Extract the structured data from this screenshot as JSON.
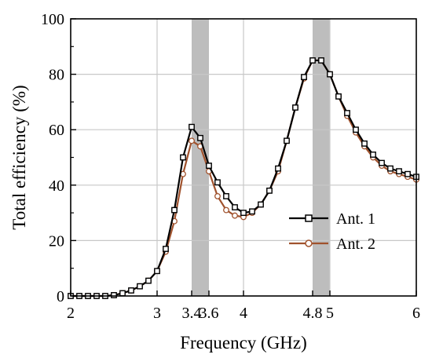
{
  "chart_data": {
    "type": "line",
    "title": "",
    "xlabel": "Frequency (GHz)",
    "ylabel": "Total efficiency (%)",
    "xlim": [
      2,
      6
    ],
    "ylim": [
      0,
      100
    ],
    "xticks": [
      2,
      3,
      3.4,
      3.6,
      4,
      4.8,
      5,
      6
    ],
    "xtick_labels": [
      "2",
      "3",
      "3.4",
      "3.6",
      "4",
      "4.8",
      "5",
      "6"
    ],
    "yticks": [
      0,
      20,
      40,
      60,
      80,
      100
    ],
    "ytick_labels": [
      "0",
      "20",
      "40",
      "60",
      "80",
      "100"
    ],
    "grid": true,
    "gridlines_x": [
      3,
      4,
      5
    ],
    "gridlines_y": [
      20,
      40,
      60,
      80
    ],
    "shaded_bands": [
      [
        3.4,
        3.6
      ],
      [
        4.8,
        5.0
      ]
    ],
    "shade_color": "#bdbdbd",
    "legend_position": "lower-right",
    "x": [
      2.0,
      2.1,
      2.2,
      2.3,
      2.4,
      2.5,
      2.6,
      2.7,
      2.8,
      2.9,
      3.0,
      3.1,
      3.2,
      3.3,
      3.4,
      3.5,
      3.6,
      3.7,
      3.8,
      3.9,
      4.0,
      4.1,
      4.2,
      4.3,
      4.4,
      4.5,
      4.6,
      4.7,
      4.8,
      4.9,
      5.0,
      5.1,
      5.2,
      5.3,
      5.4,
      5.5,
      5.6,
      5.7,
      5.8,
      5.9,
      6.0
    ],
    "series": [
      {
        "name": "Ant. 1",
        "color": "#000000",
        "marker": "square",
        "values": [
          0,
          0,
          0,
          0,
          0,
          0.3,
          1,
          2,
          3.5,
          5.5,
          9,
          17,
          31,
          50,
          61,
          57,
          47,
          41,
          36,
          32,
          30,
          30.5,
          33,
          38,
          46,
          56,
          68,
          79,
          85,
          85,
          80,
          72,
          66,
          60,
          55,
          51,
          48,
          46,
          45,
          44,
          43
        ]
      },
      {
        "name": "Ant. 2",
        "color": "#a0522d",
        "marker": "circle",
        "values": [
          0,
          0,
          0,
          0,
          0,
          0.3,
          1,
          2,
          3.5,
          5.5,
          9,
          16,
          27,
          44,
          56,
          54,
          45,
          36,
          31,
          29,
          28.5,
          30,
          33,
          38,
          45,
          56,
          68,
          78.5,
          85,
          85,
          80,
          72,
          65,
          59,
          54,
          50,
          47,
          45,
          44,
          43,
          42
        ]
      }
    ]
  }
}
